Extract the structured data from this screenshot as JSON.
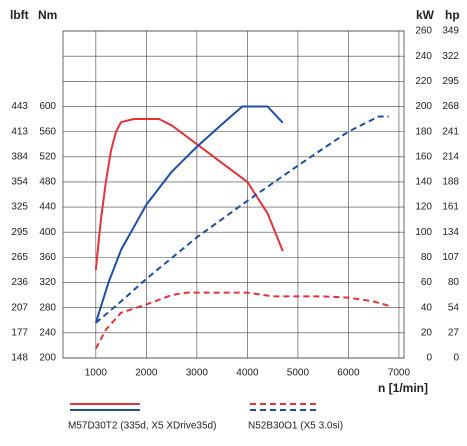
{
  "chart_data": {
    "type": "line",
    "left_header_1": "lbft",
    "left_header_2": "Nm",
    "right_header_1": "kW",
    "right_header_2": "hp",
    "xlabel": "n [1/min]",
    "xlim": [
      350,
      7100
    ],
    "xticks": [
      1000,
      2000,
      3000,
      4000,
      5000,
      6000,
      7000
    ],
    "ylim": [
      200,
      720
    ],
    "yticks": [
      200,
      240,
      280,
      320,
      360,
      400,
      440,
      480,
      520,
      560,
      600
    ],
    "yticks_lbft": [
      {
        "value": 200,
        "label": "148"
      },
      {
        "value": 240,
        "label": "177"
      },
      {
        "value": 280,
        "label": "207"
      },
      {
        "value": 320,
        "label": "236"
      },
      {
        "value": 360,
        "label": "265"
      },
      {
        "value": 400,
        "label": "295"
      },
      {
        "value": 440,
        "label": "325"
      },
      {
        "value": 480,
        "label": "354"
      },
      {
        "value": 520,
        "label": "384"
      },
      {
        "value": 560,
        "label": "413"
      },
      {
        "value": 600,
        "label": "443"
      }
    ],
    "y2lim": [
      0,
      260
    ],
    "y2ticks": [
      0,
      20,
      40,
      60,
      80,
      100,
      120,
      140,
      160,
      180,
      200,
      220,
      240,
      260
    ],
    "y2ticks_hp": [
      {
        "value": 0,
        "label": "0"
      },
      {
        "value": 20,
        "label": "27"
      },
      {
        "value": 40,
        "label": "54"
      },
      {
        "value": 60,
        "label": "80"
      },
      {
        "value": 80,
        "label": "107"
      },
      {
        "value": 100,
        "label": "134"
      },
      {
        "value": 120,
        "label": "161"
      },
      {
        "value": 140,
        "label": "188"
      },
      {
        "value": 160,
        "label": "214"
      },
      {
        "value": 180,
        "label": "241"
      },
      {
        "value": 200,
        "label": "268"
      },
      {
        "value": 220,
        "label": "295"
      },
      {
        "value": 240,
        "label": "322"
      },
      {
        "value": 260,
        "label": "349"
      }
    ],
    "grid": true,
    "engines": [
      {
        "name": "M57D30T2 (335d, X5 XDrive35d)",
        "dashed": false,
        "series": [
          {
            "axis": "y",
            "color": "#e0343a",
            "x": [
              1000,
              1100,
              1200,
              1300,
              1400,
              1500,
              1750,
              2250,
              2500,
              3000,
              3500,
              4000,
              4400,
              4700
            ],
            "values": [
              340,
              420,
              480,
              530,
              560,
              575,
              580,
              580,
              570,
              540,
              510,
              480,
              430,
              370
            ]
          },
          {
            "axis": "y2",
            "color": "#1f4ea0",
            "x": [
              1000,
              1250,
              1500,
              2000,
              2500,
              3000,
              3500,
              3900,
              4400,
              4700
            ],
            "values": [
              28,
              60,
              86,
              122,
              148,
              168,
              186,
              200,
              200,
              187
            ]
          }
        ]
      },
      {
        "name": "N52B30O1 (X5 3.0si)",
        "dashed": true,
        "series": [
          {
            "axis": "y",
            "color": "#e0343a",
            "x": [
              1000,
              1200,
              1500,
              2000,
              2500,
              2800,
              4000,
              4500,
              5000,
              5500,
              6000,
              6500,
              6800
            ],
            "values": [
              215,
              245,
              272,
              285,
              300,
              304,
              304,
              298,
              298,
              298,
              296,
              290,
              283
            ]
          },
          {
            "axis": "y2",
            "color": "#1f4ea0",
            "x": [
              1000,
              1500,
              2000,
              3000,
              4000,
              5000,
              6000,
              6600,
              6800
            ],
            "values": [
              28,
              45,
              63,
              96,
              125,
              153,
              180,
              192,
              192
            ]
          }
        ]
      }
    ]
  }
}
